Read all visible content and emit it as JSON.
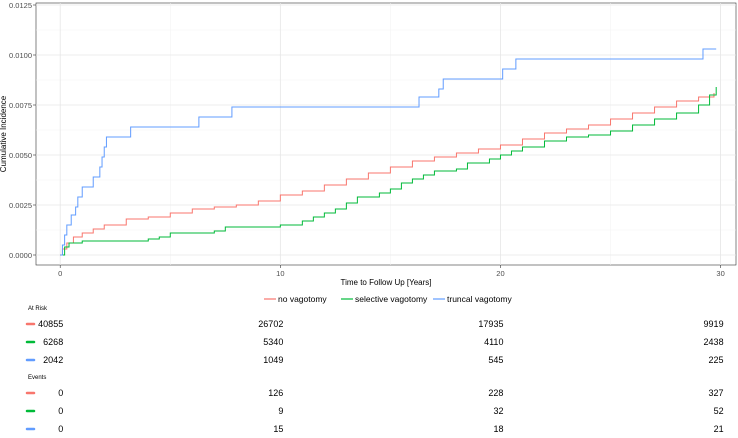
{
  "chart_data": {
    "type": "line",
    "title": "",
    "xlabel": "Time to Follow Up [Years]",
    "ylabel": "Cumulative Incidence",
    "xlim": [
      -1.1,
      30.7
    ],
    "ylim": [
      -0.0005,
      0.0126
    ],
    "x_ticks": [
      0,
      10,
      20,
      30
    ],
    "x_tick_labels": [
      "0",
      "10",
      "20",
      "30"
    ],
    "y_ticks": [
      0,
      0.0025,
      0.005,
      0.0075,
      0.01,
      0.0125
    ],
    "y_tick_labels": [
      "0.0000",
      "0.0025",
      "0.0050",
      "0.0075",
      "0.0100",
      "0.0125"
    ],
    "grid": true,
    "legend_position": "bottom",
    "series": [
      {
        "name": "no vagotomy",
        "color": "#f8766d",
        "points": [
          [
            0,
            0
          ],
          [
            0.1,
            0.0003
          ],
          [
            0.3,
            0.0006
          ],
          [
            0.6,
            0.0009
          ],
          [
            1,
            0.0011
          ],
          [
            1.5,
            0.0013
          ],
          [
            2,
            0.0015
          ],
          [
            3,
            0.0018
          ],
          [
            4,
            0.0019
          ],
          [
            5,
            0.0021
          ],
          [
            6,
            0.0023
          ],
          [
            7,
            0.0024
          ],
          [
            8,
            0.0025
          ],
          [
            9,
            0.0027
          ],
          [
            10,
            0.003
          ],
          [
            11,
            0.0032
          ],
          [
            12,
            0.0035
          ],
          [
            13,
            0.0038
          ],
          [
            14,
            0.0041
          ],
          [
            15,
            0.0044
          ],
          [
            16,
            0.0047
          ],
          [
            17,
            0.0049
          ],
          [
            18,
            0.0051
          ],
          [
            19,
            0.0053
          ],
          [
            20,
            0.0055
          ],
          [
            21,
            0.0058
          ],
          [
            22,
            0.0061
          ],
          [
            23,
            0.0063
          ],
          [
            24,
            0.0065
          ],
          [
            25,
            0.0068
          ],
          [
            26,
            0.0071
          ],
          [
            27,
            0.0074
          ],
          [
            28,
            0.0077
          ],
          [
            29,
            0.0079
          ],
          [
            29.7,
            0.0081
          ]
        ]
      },
      {
        "name": "selective vagotomy",
        "color": "#00ba38",
        "points": [
          [
            0,
            0
          ],
          [
            0.2,
            0.0004
          ],
          [
            0.4,
            0.0006
          ],
          [
            1,
            0.0007
          ],
          [
            2,
            0.0007
          ],
          [
            4,
            0.0008
          ],
          [
            4.5,
            0.0009
          ],
          [
            5,
            0.0011
          ],
          [
            7,
            0.0012
          ],
          [
            7.5,
            0.0014
          ],
          [
            10,
            0.0015
          ],
          [
            11,
            0.0017
          ],
          [
            11.5,
            0.0019
          ],
          [
            12,
            0.0021
          ],
          [
            12.5,
            0.0023
          ],
          [
            13,
            0.0026
          ],
          [
            13.5,
            0.0029
          ],
          [
            14.5,
            0.0031
          ],
          [
            15,
            0.0033
          ],
          [
            15.5,
            0.0036
          ],
          [
            16,
            0.0038
          ],
          [
            16.5,
            0.004
          ],
          [
            17,
            0.0042
          ],
          [
            18,
            0.0043
          ],
          [
            18.5,
            0.0046
          ],
          [
            19.5,
            0.0048
          ],
          [
            20,
            0.005
          ],
          [
            20.5,
            0.0052
          ],
          [
            21,
            0.0054
          ],
          [
            22,
            0.0057
          ],
          [
            23,
            0.0059
          ],
          [
            24,
            0.006
          ],
          [
            25,
            0.0062
          ],
          [
            26,
            0.0065
          ],
          [
            27,
            0.0068
          ],
          [
            28,
            0.0071
          ],
          [
            29,
            0.0075
          ],
          [
            29.5,
            0.008
          ],
          [
            29.8,
            0.0084
          ]
        ]
      },
      {
        "name": "truncal vagotomy",
        "color": "#619cff",
        "points": [
          [
            0,
            0
          ],
          [
            0.1,
            0.0005
          ],
          [
            0.2,
            0.001
          ],
          [
            0.3,
            0.0015
          ],
          [
            0.5,
            0.002
          ],
          [
            0.7,
            0.0024
          ],
          [
            0.8,
            0.0029
          ],
          [
            1,
            0.0034
          ],
          [
            1.5,
            0.0039
          ],
          [
            1.8,
            0.0044
          ],
          [
            1.9,
            0.0049
          ],
          [
            2,
            0.0054
          ],
          [
            2.1,
            0.0059
          ],
          [
            3.2,
            0.0064
          ],
          [
            6.3,
            0.0069
          ],
          [
            7.8,
            0.0074
          ],
          [
            16.3,
            0.0079
          ],
          [
            17.2,
            0.0083
          ],
          [
            17.4,
            0.0088
          ],
          [
            20.1,
            0.0093
          ],
          [
            20.7,
            0.0098
          ],
          [
            29.2,
            0.0103
          ],
          [
            29.8,
            0.0103
          ]
        ]
      }
    ]
  },
  "risk_table": {
    "at_risk_title": "At Risk",
    "events_title": "Events",
    "at_risk": [
      [
        "40855",
        "26702",
        "17935",
        "9919"
      ],
      [
        "6268",
        "5340",
        "4110",
        "2438"
      ],
      [
        "2042",
        "1049",
        "545",
        "225"
      ]
    ],
    "events": [
      [
        "0",
        "126",
        "228",
        "327"
      ],
      [
        "0",
        "9",
        "32",
        "52"
      ],
      [
        "0",
        "15",
        "18",
        "21"
      ]
    ]
  }
}
